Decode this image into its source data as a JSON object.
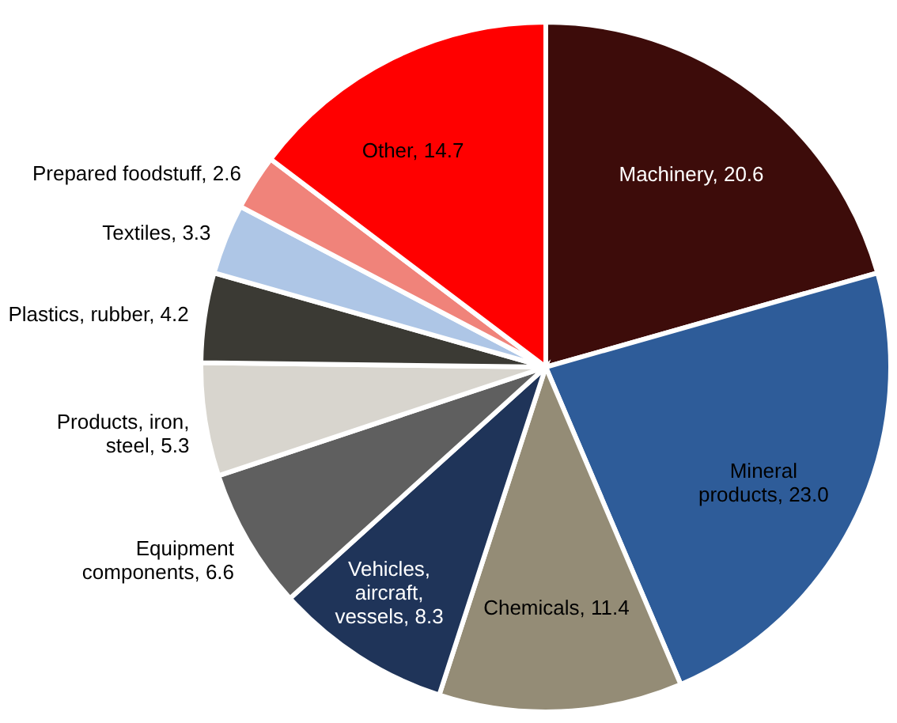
{
  "chart_data": {
    "type": "pie",
    "categories": [
      "Machinery",
      "Mineral products",
      "Chemicals",
      "Vehicles, aircraft, vessels",
      "Equipment components",
      "Products, iron, steel",
      "Plastics, rubber",
      "Textiles",
      "Prepared foodstuff",
      "Other"
    ],
    "values": [
      20.6,
      23.0,
      11.4,
      8.3,
      6.6,
      5.3,
      4.2,
      3.3,
      2.6,
      14.7
    ],
    "value_labels": [
      "20.6",
      "23.0",
      "11.4",
      "8.3",
      "6.6",
      "5.3",
      "4.2",
      "3.3",
      "2.6",
      "14.7"
    ],
    "colors": [
      "#3d0c0a",
      "#2e5c99",
      "#948c76",
      "#1f3459",
      "#5f5f5f",
      "#d8d5ce",
      "#3b3a34",
      "#aec6e6",
      "#f0837a",
      "#ff0000"
    ]
  }
}
